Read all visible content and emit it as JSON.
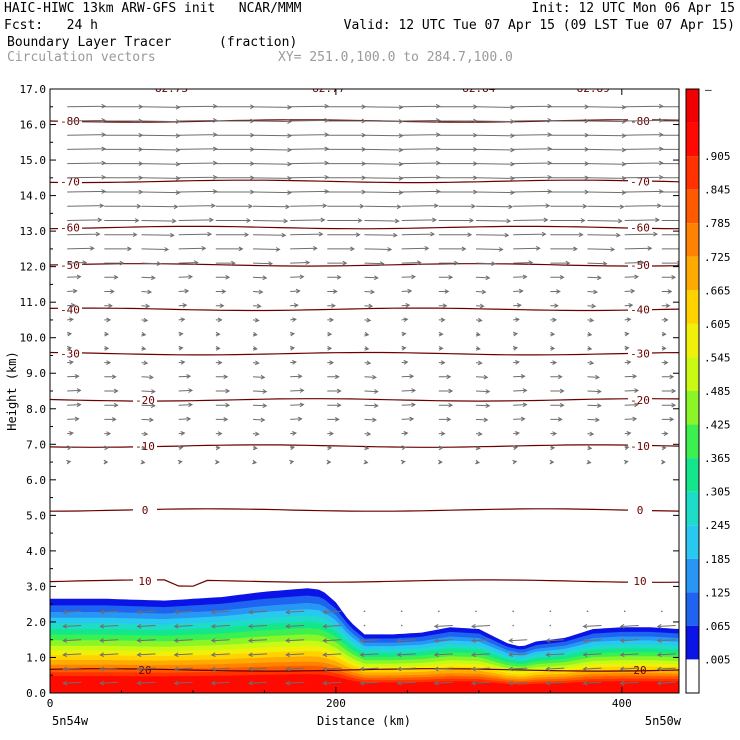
{
  "header": {
    "line1_left": "HAIC-HIWC 13km ARW-GFS init   NCAR/MMM",
    "line1_right": "Init: 12 UTC Mon 06 Apr 15",
    "line2_left": "Fcst:   24 h",
    "line2_right": "Valid: 12 UTC Tue 07 Apr 15 (09 LST Tue 07 Apr 15)",
    "line3_left": "Boundary Layer Tracer",
    "line3_units": "(fraction)",
    "line4_left": "Circulation vectors",
    "line4_xy": "XY= 251.0,100.0 to 284.7,100.0"
  },
  "chart_data": {
    "type": "heatmap",
    "title": "Boundary Layer Tracer",
    "units": "(fraction)",
    "xlabel": "Distance (km)",
    "ylabel": "Height (km)",
    "xlim": [
      0,
      440
    ],
    "ylim": [
      0.0,
      17.0
    ],
    "x_ticks": [
      "0",
      "200",
      "400"
    ],
    "x_tick_values": [
      0,
      200,
      400
    ],
    "x_end_labels": {
      "left": "5n54w",
      "right": "5n50w"
    },
    "y_ticks": [
      "0.0",
      "1.0",
      "2.0",
      "3.0",
      "4.0",
      "5.0",
      "6.0",
      "7.0",
      "8.0",
      "9.0",
      "10.0",
      "11.0",
      "12.0",
      "13.0",
      "14.0",
      "15.0",
      "16.0",
      "17.0"
    ],
    "y_tick_values": [
      0,
      1,
      2,
      3,
      4,
      5,
      6,
      7,
      8,
      9,
      10,
      11,
      12,
      13,
      14,
      15,
      16,
      17
    ],
    "colorbar": {
      "labels": [
        ".005",
        ".065",
        ".125",
        ".185",
        ".245",
        ".305",
        ".365",
        ".425",
        ".485",
        ".545",
        ".605",
        ".665",
        ".725",
        ".785",
        ".845",
        ".905"
      ],
      "values": [
        0.005,
        0.065,
        0.125,
        0.185,
        0.245,
        0.305,
        0.365,
        0.425,
        0.485,
        0.545,
        0.605,
        0.665,
        0.725,
        0.785,
        0.845,
        0.905
      ],
      "top_label": "–",
      "colors": [
        "#ffffff",
        "#0a14e6",
        "#1e64f0",
        "#2896f5",
        "#28c8f0",
        "#1edcc8",
        "#14e68c",
        "#3cf050",
        "#8cf528",
        "#c8fa14",
        "#f0f00a",
        "#ffd200",
        "#ffaa00",
        "#ff8200",
        "#ff5a00",
        "#ff3200",
        "#ff0a00",
        "#f00000"
      ]
    },
    "tracer_top_km": {
      "x": [
        0,
        40,
        80,
        120,
        150,
        180,
        190,
        200,
        210,
        220,
        240,
        260,
        280,
        300,
        320,
        330,
        340,
        360,
        380,
        400,
        420,
        440
      ],
      "y": [
        2.65,
        2.65,
        2.6,
        2.7,
        2.85,
        2.95,
        2.9,
        2.55,
        2.0,
        1.65,
        1.65,
        1.7,
        1.85,
        1.8,
        1.4,
        1.3,
        1.45,
        1.55,
        1.8,
        1.85,
        1.85,
        1.8
      ]
    },
    "isotherms": [
      {
        "label": "-80",
        "height_km": 16.1
      },
      {
        "label": "-70",
        "height_km": 14.4
      },
      {
        "label": "-60",
        "height_km": 13.1
      },
      {
        "label": "-50",
        "height_km": 12.05
      },
      {
        "label": "-40",
        "height_km": 10.8
      },
      {
        "label": "-30",
        "height_km": 9.55
      },
      {
        "label": "-20",
        "height_km": 8.25
      },
      {
        "label": "-10",
        "height_km": 6.95
      },
      {
        "label": "0",
        "height_km": 5.15
      },
      {
        "label": "10",
        "height_km": 3.15
      },
      {
        "label": "20",
        "height_km": 0.65
      }
    ],
    "top_labels": [
      "82.73",
      "82.77",
      "82.84",
      "82.89"
    ],
    "top_label_x_km": [
      85,
      195,
      300,
      380
    ],
    "vector_rows": [
      {
        "y_km": 16.5,
        "len": 1.0
      },
      {
        "y_km": 16.1,
        "len": 1.0
      },
      {
        "y_km": 15.7,
        "len": 1.0
      },
      {
        "y_km": 15.3,
        "len": 1.0
      },
      {
        "y_km": 14.9,
        "len": 1.0
      },
      {
        "y_km": 14.5,
        "len": 1.0
      },
      {
        "y_km": 14.1,
        "len": 1.0
      },
      {
        "y_km": 13.7,
        "len": 0.95
      },
      {
        "y_km": 13.3,
        "len": 0.9
      },
      {
        "y_km": 12.9,
        "len": 0.85
      },
      {
        "y_km": 12.5,
        "len": 0.7
      },
      {
        "y_km": 12.1,
        "len": 0.5
      },
      {
        "y_km": 11.7,
        "len": 0.35
      },
      {
        "y_km": 11.3,
        "len": 0.25
      },
      {
        "y_km": 10.9,
        "len": 0.2
      },
      {
        "y_km": 10.5,
        "len": 0.15
      },
      {
        "y_km": 10.1,
        "len": 0.1
      },
      {
        "y_km": 9.7,
        "len": 0.1
      },
      {
        "y_km": 9.3,
        "len": 0.15
      },
      {
        "y_km": 8.9,
        "len": 0.3
      },
      {
        "y_km": 8.5,
        "len": 0.35
      },
      {
        "y_km": 8.1,
        "len": 0.35
      },
      {
        "y_km": 7.7,
        "len": 0.3
      },
      {
        "y_km": 7.3,
        "len": 0.15
      },
      {
        "y_km": 6.9,
        "len": 0.1
      },
      {
        "y_km": 6.5,
        "len": 0.05
      }
    ]
  }
}
